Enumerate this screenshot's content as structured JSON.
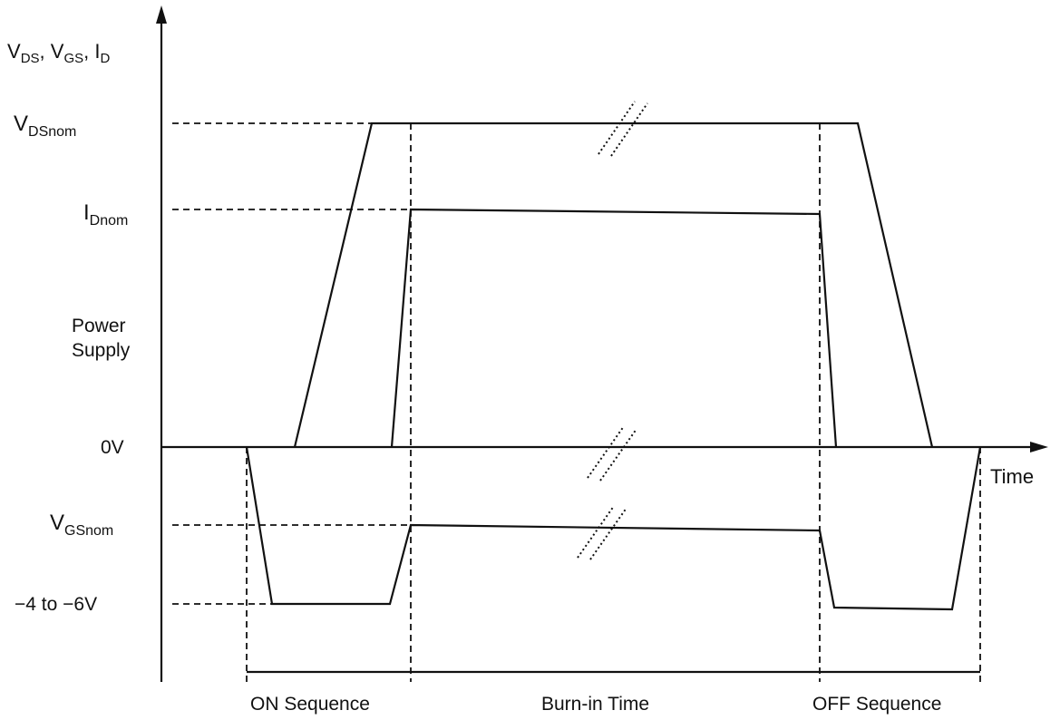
{
  "axes": {
    "y_label": {
      "parts": [
        "V",
        "DS",
        ", V",
        "GS",
        ", I",
        "D"
      ]
    },
    "x_label": "Time"
  },
  "levels": {
    "vds_nom": {
      "main": "V",
      "sub": "DSnom"
    },
    "id_nom": {
      "main": "I",
      "sub": "Dnom"
    },
    "zero": "0V",
    "vgs_nom": {
      "main": "V",
      "sub": "GSnom"
    },
    "neg": "−4 to −6V"
  },
  "side_label": {
    "line1": "Power",
    "line2": "Supply"
  },
  "phases": {
    "on": "ON Sequence",
    "burn_in": "Burn-in Time",
    "off": "OFF Sequence"
  }
}
